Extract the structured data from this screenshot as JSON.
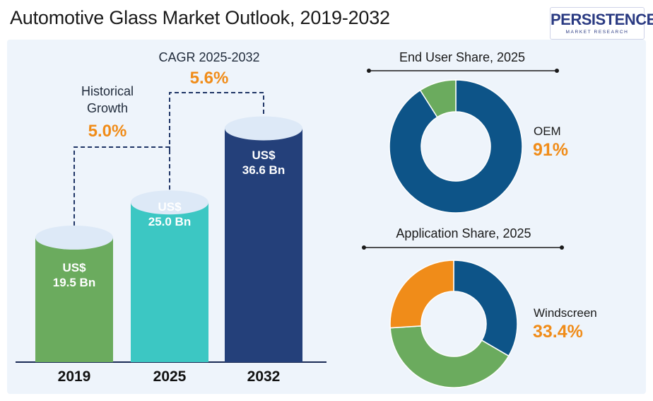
{
  "title": "Automotive Glass Market Outlook, 2019-2032",
  "logo": {
    "word": "PERSISTENCE",
    "sub": "MARKET RESEARCH"
  },
  "annotations": {
    "historical": {
      "label_line1": "Historical",
      "label_line2": "Growth",
      "value": "5.0%"
    },
    "cagr": {
      "label": "CAGR 2025-2032",
      "value": "5.6%"
    }
  },
  "chart_data": [
    {
      "type": "bar",
      "title": "",
      "categories": [
        "2019",
        "2025",
        "2032"
      ],
      "values": [
        19.5,
        25.0,
        36.6
      ],
      "unit": "US$ Bn",
      "labels": [
        {
          "line1": "US$",
          "line2": "19.5 Bn"
        },
        {
          "line1": "US$",
          "line2": "25.0 Bn"
        },
        {
          "line1": "US$",
          "line2": "36.6 Bn"
        }
      ],
      "colors": [
        "#6bab5e",
        "#3cc7c3",
        "#24407a"
      ],
      "cap_color": "#dde9f7",
      "ylim": [
        0,
        40
      ]
    },
    {
      "type": "pie",
      "title": "End User Share, 2025",
      "slices": [
        {
          "name": "OEM",
          "value": 91,
          "color": "#0d5488"
        },
        {
          "name": "",
          "value": 9,
          "color": "#6bab5e"
        }
      ],
      "legend": {
        "name": "OEM",
        "value": "91%"
      }
    },
    {
      "type": "pie",
      "title": "Application Share, 2025",
      "slices": [
        {
          "name": "Windscreen",
          "value": 33.4,
          "color": "#0d5488"
        },
        {
          "name": "",
          "value": 40.6,
          "color": "#6bab5e"
        },
        {
          "name": "",
          "value": 26.0,
          "color": "#f08c19"
        }
      ],
      "legend": {
        "name": "Windscreen",
        "value": "33.4%"
      }
    }
  ]
}
